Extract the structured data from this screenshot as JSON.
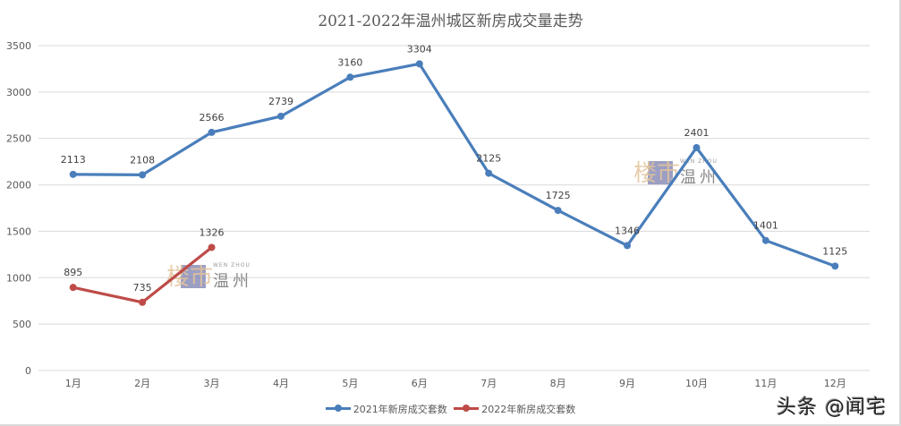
{
  "chart_data": {
    "type": "line",
    "title": "2021-2022年温州城区新房成交量走势",
    "xlabel": "",
    "ylabel": "",
    "categories": [
      "1月",
      "2月",
      "3月",
      "4月",
      "5月",
      "6月",
      "7月",
      "8月",
      "9月",
      "10月",
      "11月",
      "12月"
    ],
    "series": [
      {
        "name": "2021年新房成交套数",
        "color": "#4a7ebb",
        "values": [
          2113,
          2108,
          2566,
          2739,
          3160,
          3304,
          2125,
          1725,
          1346,
          2401,
          1401,
          1125
        ]
      },
      {
        "name": "2022年新房成交套数",
        "color": "#be4b48",
        "values": [
          895,
          735,
          1326
        ]
      }
    ],
    "ylim": [
      0,
      3500
    ],
    "yticks": [
      0,
      500,
      1000,
      1500,
      2000,
      2500,
      3000,
      3500
    ],
    "grid": true,
    "legend_position": "bottom",
    "data_labels": true
  },
  "watermarks": {
    "chart_logo_cn": "楼市",
    "chart_logo_city": "温州",
    "chart_logo_en": "WEN ZHOU",
    "corner": "头条 @闻宅"
  }
}
